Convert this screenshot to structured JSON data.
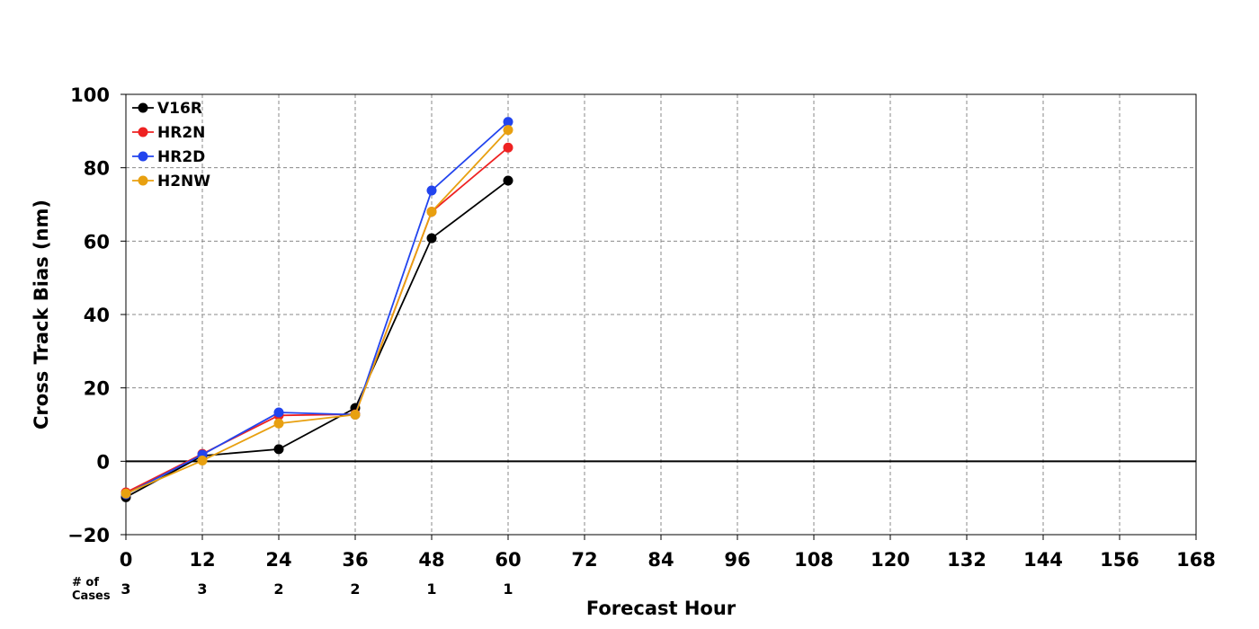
{
  "chart_data": {
    "type": "line",
    "xlabel": "Forecast Hour",
    "ylabel": "Cross Track Bias (nm)",
    "xlim": [
      0,
      168
    ],
    "ylim": [
      -20,
      100
    ],
    "x_ticks": [
      "0",
      "12",
      "24",
      "36",
      "48",
      "60",
      "72",
      "84",
      "96",
      "108",
      "120",
      "132",
      "144",
      "156",
      "168"
    ],
    "y_ticks": [
      "−20",
      "0",
      "20",
      "40",
      "60",
      "80",
      "100"
    ],
    "grid": true,
    "legend_position": "top-left",
    "cases_label": [
      "# of",
      "Cases"
    ],
    "cases": [
      {
        "x": 0,
        "label": "3"
      },
      {
        "x": 12,
        "label": "3"
      },
      {
        "x": 24,
        "label": "2"
      },
      {
        "x": 36,
        "label": "2"
      },
      {
        "x": 48,
        "label": "1"
      },
      {
        "x": 60,
        "label": "1"
      }
    ],
    "x": [
      0,
      12,
      24,
      36,
      48,
      60
    ],
    "series": [
      {
        "name": "V16R",
        "color": "#000000",
        "values": [
          -9.8,
          1.5,
          3.3,
          14.5,
          60.8,
          76.5
        ]
      },
      {
        "name": "HR2N",
        "color": "#ee2222",
        "values": [
          -8.5,
          2.0,
          12.5,
          12.8,
          68.0,
          85.5
        ]
      },
      {
        "name": "HR2D",
        "color": "#2244ee",
        "values": [
          -9.0,
          1.8,
          13.3,
          12.7,
          73.8,
          92.5
        ]
      },
      {
        "name": "H2NW",
        "color": "#e8a010",
        "values": [
          -8.8,
          0.2,
          10.3,
          12.7,
          68.0,
          90.3
        ]
      }
    ]
  }
}
